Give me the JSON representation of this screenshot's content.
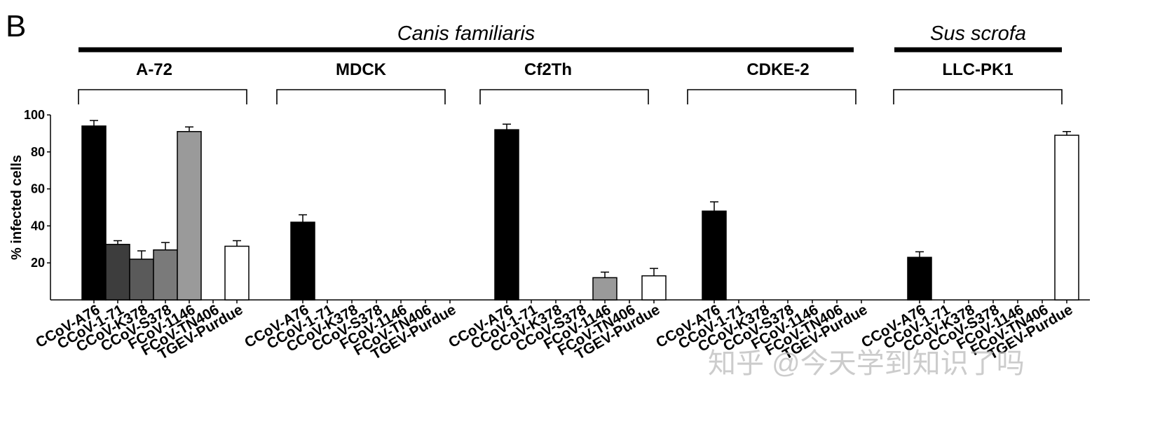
{
  "panel_label": "B",
  "watermark": "知乎 @今天学到知识了吗",
  "chart_data": {
    "type": "bar",
    "ylabel": "% infected cells",
    "xlabel": "",
    "ylim": [
      0,
      100
    ],
    "yticks": [
      20,
      40,
      60,
      80,
      100
    ],
    "grid": false,
    "legend": "none",
    "species_groups": [
      {
        "name": "Canis familiaris",
        "cell_lines": [
          "A-72",
          "MDCK",
          "Cf2Th",
          "CDKE-2"
        ]
      },
      {
        "name": "Sus scrofa",
        "cell_lines": [
          "LLC-PK1"
        ]
      }
    ],
    "virus_colors": [
      "#000000",
      "#3d3d3d",
      "#5a5a5a",
      "#7a7a7a",
      "#9a9a9a",
      "#ffffff",
      "#ffffff"
    ],
    "panels": [
      {
        "cell_line": "A-72",
        "categories": [
          "CCoV-A76",
          "CCoV-1-71",
          "CCoV-K378",
          "CCoV-S378",
          "FCoV-1146",
          "FCoV-TN406",
          "TGEV-Purdue"
        ],
        "values": [
          94,
          30,
          22,
          27,
          91,
          0,
          29
        ],
        "errors": [
          3,
          2,
          4.5,
          4,
          2.5,
          0,
          3
        ]
      },
      {
        "cell_line": "MDCK",
        "categories": [
          "CCoV-A76",
          "CCoV-1-71",
          "CCoV-K378",
          "CCoV-S378",
          "FCoV-1146",
          "FCoV-TN406",
          "TGEV-Purdue"
        ],
        "values": [
          42,
          0,
          0,
          0,
          0,
          0,
          0
        ],
        "errors": [
          4,
          0,
          0,
          0,
          0,
          0,
          0
        ]
      },
      {
        "cell_line": "Cf2Th",
        "categories": [
          "CCoV-A76",
          "CCoV-1-71",
          "CCoV-K378",
          "CCoV-S378",
          "FCoV-1146",
          "FCoV-TN406",
          "TGEV-Purdue"
        ],
        "values": [
          92,
          0,
          0,
          0,
          12,
          0,
          13
        ],
        "errors": [
          3,
          0,
          0,
          0,
          3,
          0,
          4
        ]
      },
      {
        "cell_line": "CDKE-2",
        "categories": [
          "CCoV-A76",
          "CCoV-1-71",
          "CCoV-K378",
          "CCoV-S378",
          "FCoV-1146",
          "FCoV-TN406",
          "TGEV-Purdue"
        ],
        "values": [
          48,
          0,
          0,
          0,
          0,
          0,
          0
        ],
        "errors": [
          5,
          0,
          0,
          0,
          0,
          0,
          0
        ]
      },
      {
        "cell_line": "LLC-PK1",
        "categories": [
          "CCoV-A76",
          "CCoV-1-71",
          "CCoV-K378",
          "CCoV-S378",
          "FCoV-1146",
          "FCoV-TN406",
          "TGEV-Purdue"
        ],
        "values": [
          23,
          0,
          0,
          0,
          0,
          0,
          89
        ],
        "errors": [
          3,
          0,
          0,
          0,
          0,
          0,
          2
        ]
      }
    ]
  }
}
